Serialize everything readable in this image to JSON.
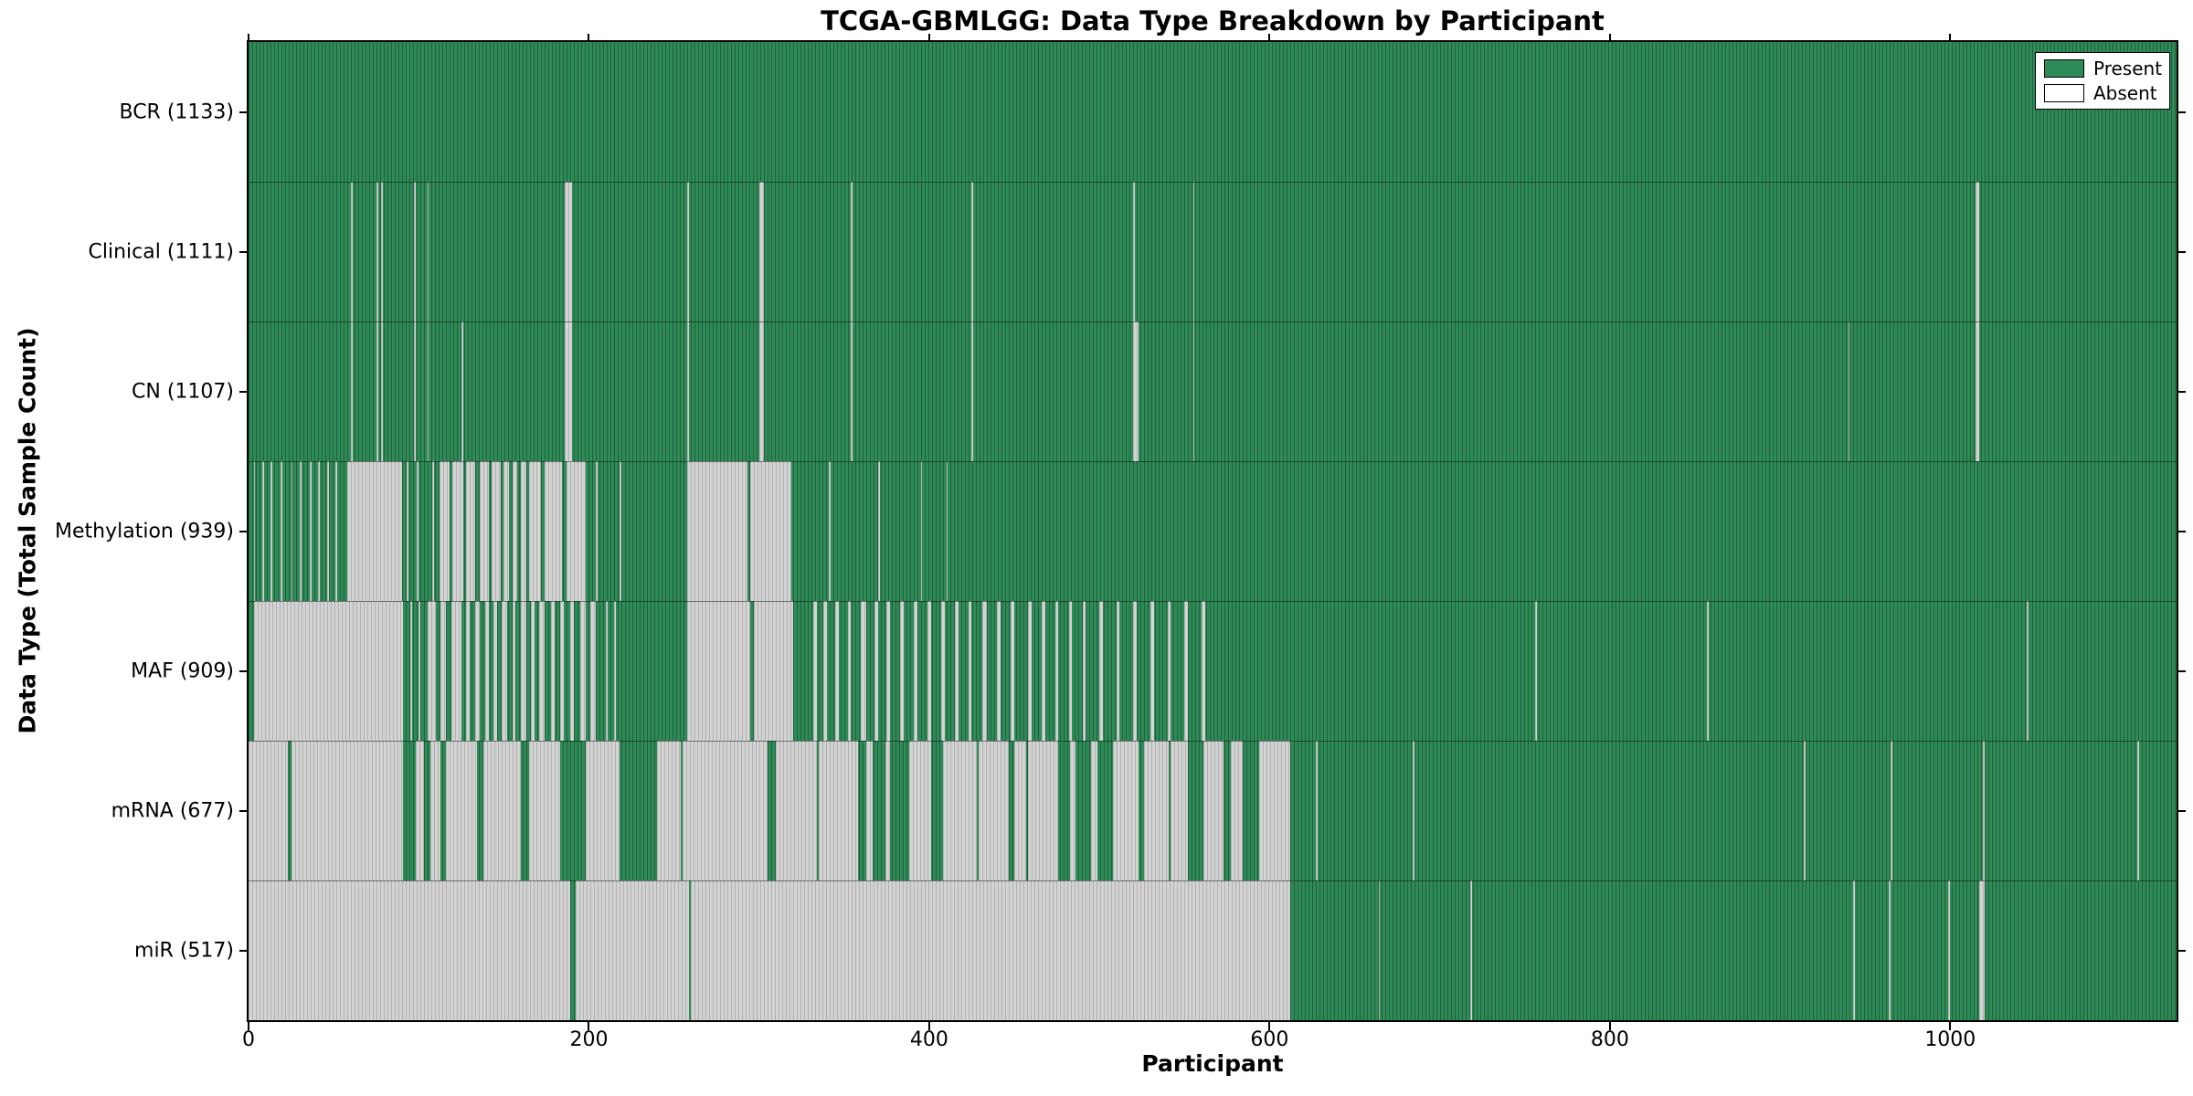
{
  "chart_data": {
    "type": "heatmap",
    "title": "TCGA-GBMLGG: Data Type Breakdown by Participant",
    "xlabel": "Participant",
    "ylabel": "Data Type (Total Sample Count)",
    "x_min": 0,
    "x_max": 1133,
    "x_ticks": [
      0,
      200,
      400,
      600,
      800,
      1000
    ],
    "grid": false,
    "legend": {
      "position": "upper-right",
      "entries": [
        {
          "label": "Present",
          "color": "#2e8b57"
        },
        {
          "label": "Absent",
          "color": "#ffffff"
        }
      ]
    },
    "colors": {
      "present": "#2e8b57",
      "absent": "#d3d3d3",
      "bar_edge": "rgba(0,0,0,0.3)"
    },
    "rows": [
      {
        "name": "BCR",
        "label": "BCR (1133)",
        "total": 1133,
        "absent_intervals": []
      },
      {
        "name": "Clinical",
        "label": "Clinical (1111)",
        "total": 1111,
        "absent_intervals": [
          [
            60,
            61
          ],
          [
            75,
            76
          ],
          [
            78,
            79
          ],
          [
            97,
            98
          ],
          [
            105,
            106
          ],
          [
            186,
            190
          ],
          [
            258,
            259
          ],
          [
            300,
            303
          ],
          [
            354,
            355
          ],
          [
            425,
            426
          ],
          [
            520,
            521
          ],
          [
            555,
            556
          ],
          [
            1015,
            1017
          ]
        ]
      },
      {
        "name": "CN",
        "label": "CN (1107)",
        "total": 1107,
        "absent_intervals": [
          [
            60,
            61
          ],
          [
            75,
            76
          ],
          [
            78,
            79
          ],
          [
            97,
            98
          ],
          [
            105,
            106
          ],
          [
            125,
            126
          ],
          [
            186,
            190
          ],
          [
            258,
            259
          ],
          [
            300,
            303
          ],
          [
            354,
            355
          ],
          [
            425,
            426
          ],
          [
            520,
            523
          ],
          [
            555,
            556
          ],
          [
            940,
            941
          ],
          [
            1015,
            1017
          ]
        ]
      },
      {
        "name": "Methylation",
        "label": "Methylation (939)",
        "total": 939,
        "absent_intervals": [
          [
            3,
            4
          ],
          [
            8,
            9
          ],
          [
            13,
            14
          ],
          [
            19,
            20
          ],
          [
            25,
            26
          ],
          [
            30,
            31
          ],
          [
            36,
            37
          ],
          [
            41,
            42
          ],
          [
            46,
            47
          ],
          [
            51,
            52
          ],
          [
            58,
            90
          ],
          [
            93,
            94
          ],
          [
            99,
            100
          ],
          [
            108,
            109
          ],
          [
            112,
            118
          ],
          [
            120,
            126
          ],
          [
            128,
            133
          ],
          [
            136,
            141
          ],
          [
            143,
            148
          ],
          [
            150,
            153
          ],
          [
            155,
            158
          ],
          [
            160,
            163
          ],
          [
            165,
            172
          ],
          [
            174,
            184
          ],
          [
            187,
            198
          ],
          [
            204,
            205
          ],
          [
            218,
            219
          ],
          [
            258,
            293
          ],
          [
            295,
            319
          ],
          [
            341,
            342
          ],
          [
            370,
            371
          ],
          [
            395,
            396
          ],
          [
            410,
            411
          ]
        ]
      },
      {
        "name": "MAF",
        "label": "MAF (909)",
        "total": 909,
        "absent_intervals": [
          [
            3,
            91
          ],
          [
            95,
            96
          ],
          [
            100,
            101
          ],
          [
            105,
            110
          ],
          [
            113,
            116
          ],
          [
            119,
            125
          ],
          [
            128,
            130
          ],
          [
            133,
            136
          ],
          [
            139,
            141
          ],
          [
            144,
            146
          ],
          [
            149,
            152
          ],
          [
            155,
            157
          ],
          [
            160,
            163
          ],
          [
            166,
            168
          ],
          [
            171,
            174
          ],
          [
            178,
            180
          ],
          [
            183,
            185
          ],
          [
            189,
            191
          ],
          [
            195,
            198
          ],
          [
            201,
            204
          ],
          [
            210,
            211
          ],
          [
            215,
            216
          ],
          [
            258,
            295
          ],
          [
            297,
            320
          ],
          [
            332,
            334
          ],
          [
            338,
            340
          ],
          [
            345,
            347
          ],
          [
            352,
            354
          ],
          [
            360,
            363
          ],
          [
            368,
            370
          ],
          [
            375,
            377
          ],
          [
            383,
            385
          ],
          [
            391,
            393
          ],
          [
            399,
            401
          ],
          [
            407,
            409
          ],
          [
            415,
            417
          ],
          [
            423,
            425
          ],
          [
            431,
            434
          ],
          [
            440,
            442
          ],
          [
            448,
            450
          ],
          [
            458,
            460
          ],
          [
            466,
            468
          ],
          [
            474,
            476
          ],
          [
            482,
            484
          ],
          [
            490,
            492
          ],
          [
            500,
            502
          ],
          [
            510,
            512
          ],
          [
            520,
            522
          ],
          [
            530,
            532
          ],
          [
            540,
            542
          ],
          [
            550,
            552
          ],
          [
            560,
            562
          ],
          [
            756,
            757
          ],
          [
            857,
            858
          ],
          [
            1045,
            1046
          ]
        ]
      },
      {
        "name": "mRNA",
        "label": "mRNA (677)",
        "total": 677,
        "absent_intervals": [
          [
            0,
            23
          ],
          [
            25,
            91
          ],
          [
            98,
            103
          ],
          [
            107,
            113
          ],
          [
            116,
            134
          ],
          [
            138,
            160
          ],
          [
            165,
            183
          ],
          [
            198,
            218
          ],
          [
            240,
            254
          ],
          [
            255,
            305
          ],
          [
            310,
            334
          ],
          [
            335,
            358
          ],
          [
            363,
            367
          ],
          [
            374,
            377
          ],
          [
            388,
            401
          ],
          [
            408,
            428
          ],
          [
            429,
            447
          ],
          [
            450,
            457
          ],
          [
            458,
            476
          ],
          [
            483,
            486
          ],
          [
            495,
            499
          ],
          [
            508,
            523
          ],
          [
            526,
            541
          ],
          [
            542,
            552
          ],
          [
            561,
            573
          ],
          [
            577,
            584
          ],
          [
            594,
            612
          ],
          [
            627,
            628
          ],
          [
            684,
            685
          ],
          [
            914,
            915
          ],
          [
            965,
            966
          ],
          [
            1019,
            1020
          ],
          [
            1110,
            1111
          ]
        ]
      },
      {
        "name": "miR",
        "label": "miR (517)",
        "total": 517,
        "absent_intervals": [
          [
            0,
            189
          ],
          [
            192,
            259
          ],
          [
            260,
            612
          ],
          [
            664,
            665
          ],
          [
            718,
            719
          ],
          [
            943,
            944
          ],
          [
            964,
            965
          ],
          [
            999,
            1000
          ],
          [
            1017,
            1020
          ]
        ]
      }
    ]
  }
}
